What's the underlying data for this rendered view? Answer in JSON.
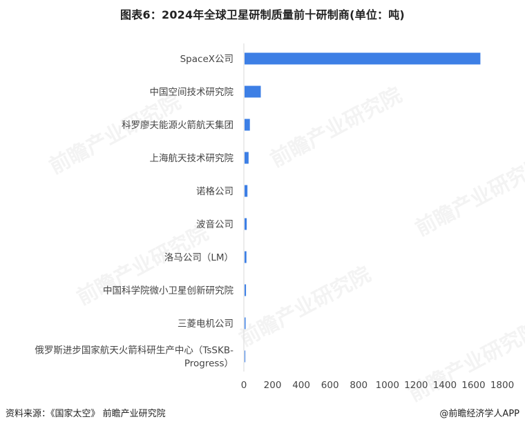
{
  "title": "图表6：2024年全球卫星研制质量前十研制商(单位：吨)",
  "source": "资料来源：《国家太空》 前瞻产业研究院",
  "brand": "@前瞻经济学人APP",
  "watermark": "前瞻产业研究院",
  "colors": {
    "bar": "#3D7FE5",
    "axis": "#D9D9D9",
    "text": "#444444"
  },
  "chart_data": {
    "type": "bar",
    "orientation": "horizontal",
    "title": "图表6：2024年全球卫星研制质量前十研制商(单位：吨)",
    "categories": [
      "SpaceX公司",
      "中国空间技术研究院",
      "科罗廖夫能源火箭航天集团",
      "上海航天技术研究院",
      "诺格公司",
      "波音公司",
      "洛马公司（LM）",
      "中国科学院微小卫星创新研究院",
      "三菱电机公司",
      "俄罗斯进步国家航天火箭科研生产中心（TsSKB-Progress）"
    ],
    "category_display_lines": [
      [
        "SpaceX公司"
      ],
      [
        "中国空间技术研究院"
      ],
      [
        "科罗廖夫能源火箭航天集团"
      ],
      [
        "上海航天技术研究院"
      ],
      [
        "诺格公司"
      ],
      [
        "波音公司"
      ],
      [
        "洛马公司（LM）"
      ],
      [
        "中国科学院微小卫星创新研究院"
      ],
      [
        "三菱电机公司"
      ],
      [
        "俄罗斯进步国家航天火箭科研生产中心（TsSKB-",
        "Progress）"
      ]
    ],
    "values": [
      1648,
      118,
      42,
      33,
      25,
      20,
      18,
      15,
      12,
      10
    ],
    "xlim": [
      0,
      1800
    ],
    "xticks": [
      0,
      200,
      400,
      600,
      800,
      1000,
      1200,
      1400,
      1600,
      1800
    ],
    "xlabel": "",
    "ylabel": "",
    "grid": false,
    "legend": "none"
  }
}
